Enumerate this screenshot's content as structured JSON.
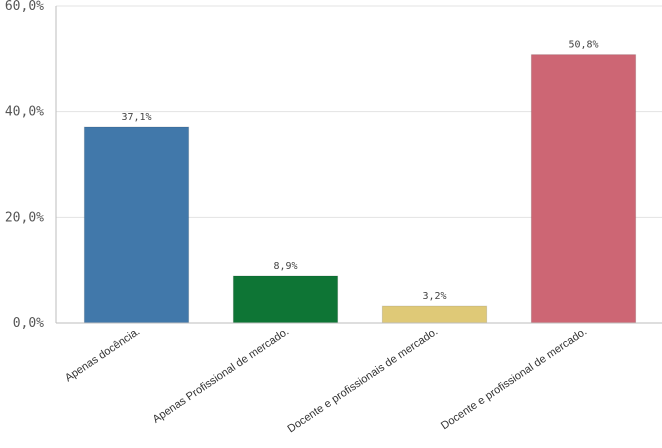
{
  "chart_data": {
    "type": "bar",
    "categories": [
      "Apenas docência.",
      "Apenas Profissional de mercado.",
      "Docente e profissionais de mercado.",
      "Docente e profissional de mercado."
    ],
    "values": [
      37.1,
      8.9,
      3.2,
      50.8
    ],
    "value_labels": [
      "37,1%",
      "8,9%",
      "3,2%",
      "50,8%"
    ],
    "colors": [
      "#4178aa",
      "#0e7535",
      "#dfc977",
      "#cd6674"
    ],
    "ylim": [
      0,
      60
    ],
    "yticks": [
      0,
      20,
      40,
      60
    ],
    "ytick_labels": [
      "0,0%",
      "20,0%",
      "40,0%",
      "60,0%"
    ],
    "grid": true,
    "title": "",
    "xlabel": "",
    "ylabel": ""
  }
}
